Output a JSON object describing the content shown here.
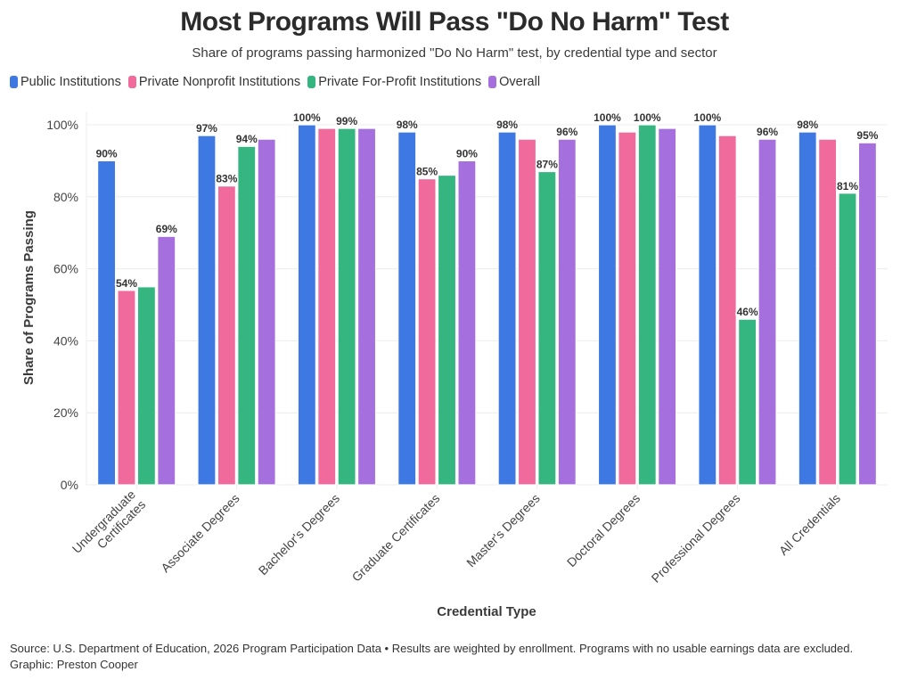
{
  "chart_data": {
    "type": "bar",
    "title": "Most Programs Will Pass \"Do No Harm\" Test",
    "subtitle": "Share of programs passing harmonized \"Do No Harm\" test, by credential type and sector",
    "xlabel": "Credential Type",
    "ylabel": "Share of Programs Passing",
    "ylim": [
      0,
      100
    ],
    "yticks": [
      0,
      20,
      40,
      60,
      80,
      100
    ],
    "ytick_labels": [
      "0%",
      "20%",
      "40%",
      "60%",
      "80%",
      "100%"
    ],
    "grid": true,
    "legend_position": "top-left",
    "categories": [
      [
        "Undergraduate",
        "Certificates"
      ],
      [
        "Associate Degrees"
      ],
      [
        "Bachelor's Degrees"
      ],
      [
        "Graduate Certificates"
      ],
      [
        "Master's Degrees"
      ],
      [
        "Doctoral Degrees"
      ],
      [
        "Professional Degrees"
      ],
      [
        "All Credentials"
      ]
    ],
    "series": [
      {
        "name": "Public Institutions",
        "color": "#3d78e3",
        "values": [
          90,
          97,
          100,
          98,
          98,
          100,
          100,
          98
        ],
        "labeled": [
          true,
          true,
          true,
          true,
          true,
          true,
          true,
          true
        ]
      },
      {
        "name": "Private Nonprofit Institutions",
        "color": "#f06b9b",
        "values": [
          54,
          83,
          99,
          85,
          96,
          98,
          97,
          96
        ],
        "labeled": [
          true,
          true,
          false,
          true,
          false,
          false,
          false,
          false
        ]
      },
      {
        "name": "Private For-Profit Institutions",
        "color": "#35b57f",
        "values": [
          55,
          94,
          99,
          86,
          87,
          100,
          46,
          81
        ],
        "labeled": [
          false,
          true,
          true,
          false,
          true,
          true,
          true,
          true
        ]
      },
      {
        "name": "Overall",
        "color": "#a570de",
        "values": [
          69,
          96,
          99,
          90,
          96,
          99,
          96,
          95
        ],
        "labeled": [
          true,
          false,
          false,
          true,
          true,
          false,
          true,
          true
        ]
      }
    ]
  },
  "footer": {
    "source": "Source: U.S. Department of Education, 2026 Program Participation Data • Results are weighted by enrollment. Programs with no usable earnings data are excluded.",
    "credit": "Graphic: Preston Cooper"
  }
}
